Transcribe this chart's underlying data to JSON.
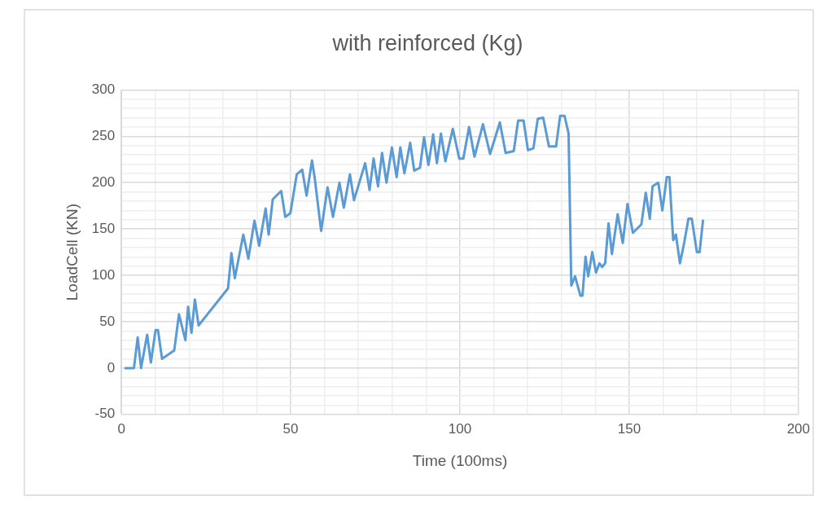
{
  "chart_data": {
    "type": "line",
    "title": "with reinforced (Kg)",
    "xlabel": "Time (100ms)",
    "ylabel": "LoadCell (KN)",
    "xlim": [
      0,
      200
    ],
    "xticks": [
      0,
      {
        "value": 10,
        "label": null
      },
      {
        "value": 20,
        "label": null
      },
      {
        "value": 30,
        "label": null
      },
      {
        "value": 40,
        "label": null
      },
      50,
      {
        "value": 60,
        "label": null
      },
      {
        "value": 70,
        "label": null
      },
      {
        "value": 80,
        "label": null
      },
      {
        "value": 90,
        "label": null
      },
      100,
      {
        "value": 110,
        "label": null
      },
      {
        "value": 120,
        "label": null
      },
      {
        "value": 130,
        "label": null
      },
      {
        "value": 140,
        "label": null
      },
      150,
      {
        "value": 160,
        "label": null
      },
      {
        "value": 170,
        "label": null
      },
      {
        "value": 180,
        "label": null
      },
      {
        "value": 190,
        "label": null
      },
      200
    ],
    "ylim": [
      -50,
      300
    ],
    "yticks": [
      -50,
      {
        "value": -40,
        "label": null
      },
      {
        "value": -30,
        "label": null
      },
      {
        "value": -20,
        "label": null
      },
      {
        "value": -10,
        "label": null
      },
      0,
      {
        "value": 10,
        "label": null
      },
      {
        "value": 20,
        "label": null
      },
      {
        "value": 30,
        "label": null
      },
      {
        "value": 40,
        "label": null
      },
      50,
      {
        "value": 60,
        "label": null
      },
      {
        "value": 70,
        "label": null
      },
      {
        "value": 80,
        "label": null
      },
      {
        "value": 90,
        "label": null
      },
      100,
      {
        "value": 110,
        "label": null
      },
      {
        "value": 120,
        "label": null
      },
      {
        "value": 130,
        "label": null
      },
      {
        "value": 140,
        "label": null
      },
      150,
      {
        "value": 160,
        "label": null
      },
      {
        "value": 170,
        "label": null
      },
      {
        "value": 180,
        "label": null
      },
      {
        "value": 190,
        "label": null
      },
      200,
      {
        "value": 210,
        "label": null
      },
      {
        "value": 220,
        "label": null
      },
      {
        "value": 230,
        "label": null
      },
      {
        "value": 240,
        "label": null
      },
      250,
      {
        "value": 260,
        "label": null
      },
      {
        "value": 270,
        "label": null
      },
      {
        "value": 280,
        "label": null
      },
      {
        "value": 290,
        "label": null
      },
      300
    ],
    "grid": true,
    "marker": "none",
    "line_style": "solid",
    "series": [
      {
        "color": "#5b9bd5",
        "x": [
          1.2,
          3.7,
          4.8,
          5.8,
          7.6,
          8.7,
          10.1,
          10.8,
          12,
          15.6,
          17,
          18.9,
          19.7,
          20.7,
          21.7,
          22.8,
          31.5,
          32.5,
          33.5,
          36,
          37.5,
          39.3,
          40.7,
          42.6,
          43.5,
          44.7,
          47.2,
          48.4,
          49.9,
          51.8,
          53.4,
          54.7,
          56.3,
          57.1,
          59,
          60.9,
          62.5,
          64.4,
          65.7,
          67.5,
          68.7,
          72,
          73.3,
          74.5,
          75.8,
          77,
          78.3,
          79.9,
          81.3,
          82.4,
          83.6,
          85.3,
          86.5,
          88.2,
          89.4,
          90.7,
          92.1,
          93.2,
          94.4,
          95.7,
          97.9,
          99.8,
          101,
          102.7,
          104.3,
          106.8,
          108.9,
          111.8,
          113.5,
          115.9,
          117.2,
          118.8,
          120.1,
          121.7,
          123,
          124.6,
          126.3,
          128.4,
          129.6,
          130.9,
          132.1,
          132.9,
          134,
          135.6,
          136.2,
          137.1,
          137.9,
          139.1,
          140.2,
          141.2,
          142,
          142.9,
          143.9,
          144.9,
          146.6,
          148.1,
          149.5,
          151.1,
          153.6,
          154.9,
          156.1,
          156.9,
          158.6,
          159.8,
          161.1,
          161.9,
          163,
          163.8,
          165,
          166.3,
          167.5,
          168.5,
          170,
          170.8,
          171.8
        ],
        "values": [
          0,
          0,
          33,
          0,
          36,
          6,
          41,
          41,
          10,
          19,
          58,
          30,
          66,
          38,
          74,
          46,
          86,
          124,
          97,
          144,
          118,
          159,
          132,
          172,
          144,
          182,
          191,
          163,
          167,
          209,
          214,
          186,
          224,
          205,
          148,
          195,
          163,
          200,
          173,
          209,
          181,
          221,
          192,
          226,
          196,
          232,
          200,
          238,
          206,
          238,
          210,
          243,
          213,
          216,
          249,
          219,
          252,
          221,
          253,
          223,
          258,
          226,
          226,
          260,
          228,
          263,
          231,
          265,
          232,
          234,
          267,
          267,
          235,
          237,
          269,
          270,
          239,
          239,
          272,
          272,
          253,
          89,
          99,
          78,
          78,
          120,
          99,
          125,
          103,
          113,
          109,
          113,
          156,
          123,
          166,
          135,
          177,
          146,
          155,
          189,
          161,
          196,
          200,
          170,
          206,
          206,
          138,
          144,
          113,
          136,
          161,
          161,
          125,
          125,
          159
        ]
      }
    ]
  }
}
